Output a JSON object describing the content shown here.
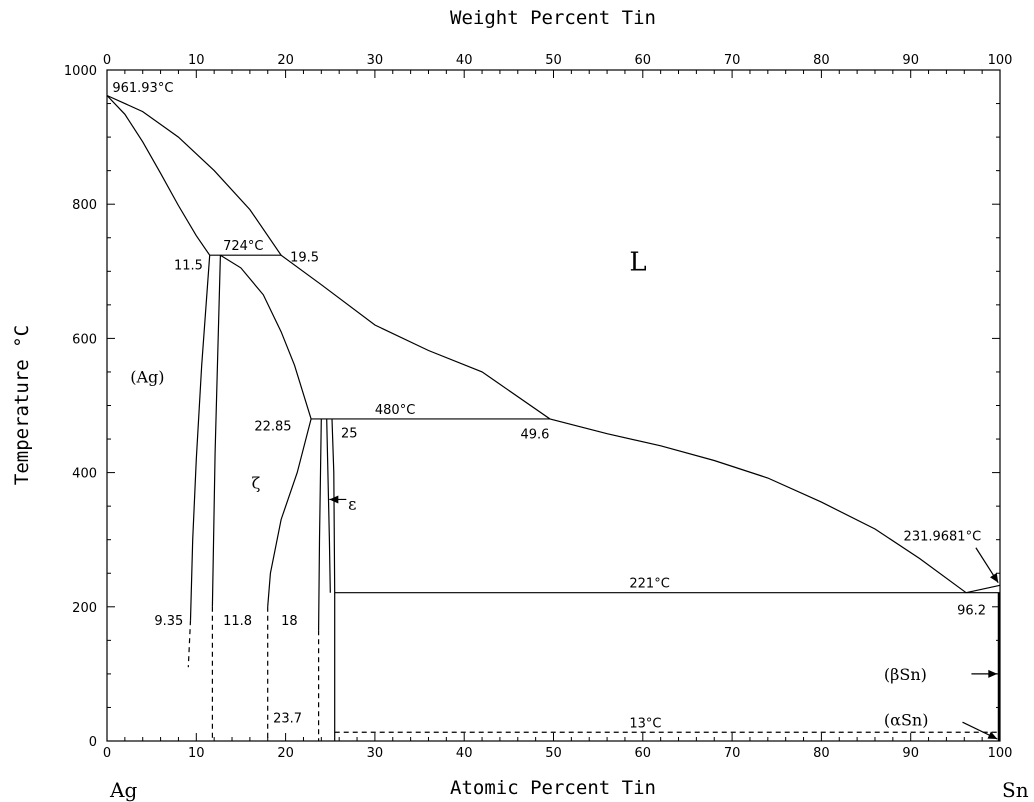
{
  "chart_data": {
    "type": "line",
    "title": "",
    "top_axis_title": "Weight Percent Tin",
    "xlabel": "Atomic Percent Tin",
    "ylabel": "Temperature °C",
    "left_element": "Ag",
    "right_element": "Sn",
    "xlim": [
      0,
      100
    ],
    "ylim": [
      0,
      1000
    ],
    "x_ticks": [
      "0",
      "10",
      "20",
      "30",
      "40",
      "50",
      "60",
      "70",
      "80",
      "90",
      "100"
    ],
    "y_ticks": [
      "0",
      "200",
      "400",
      "600",
      "800",
      "1000"
    ],
    "top_ticks": [
      "0",
      "10",
      "20",
      "30",
      "40",
      "50",
      "60",
      "70",
      "80",
      "90",
      "100"
    ],
    "grid": false,
    "series": [
      {
        "style": "solid",
        "points": [
          [
            0,
            961.93
          ],
          [
            2,
            934
          ],
          [
            4,
            893
          ],
          [
            6,
            846
          ],
          [
            8,
            798
          ],
          [
            10,
            753
          ],
          [
            11.5,
            724
          ]
        ]
      },
      {
        "style": "solid",
        "points": [
          [
            0,
            961.93
          ],
          [
            4,
            938
          ],
          [
            8,
            900
          ],
          [
            12,
            850
          ],
          [
            16,
            792
          ],
          [
            19.5,
            724
          ],
          [
            24,
            680
          ],
          [
            30,
            620
          ],
          [
            36,
            582
          ],
          [
            42,
            550
          ],
          [
            49.6,
            480
          ],
          [
            56,
            458
          ],
          [
            62,
            440
          ],
          [
            68,
            418
          ],
          [
            74,
            392
          ],
          [
            80,
            356
          ],
          [
            86,
            316
          ],
          [
            91,
            272
          ],
          [
            96.2,
            221
          ]
        ]
      },
      {
        "style": "solid",
        "points": [
          [
            11.5,
            724
          ],
          [
            10.6,
            560
          ],
          [
            10,
            420
          ],
          [
            9.6,
            300
          ],
          [
            9.35,
            180
          ]
        ]
      },
      {
        "style": "dashed",
        "points": [
          [
            9.35,
            180
          ],
          [
            9.1,
            110
          ]
        ]
      },
      {
        "style": "solid",
        "points": [
          [
            12.7,
            724
          ],
          [
            12.1,
            430
          ],
          [
            11.8,
            200
          ]
        ]
      },
      {
        "style": "dashed",
        "points": [
          [
            11.8,
            200
          ],
          [
            11.8,
            0
          ]
        ]
      },
      {
        "style": "solid",
        "points": [
          [
            12.7,
            724
          ],
          [
            15,
            705
          ],
          [
            17.5,
            665
          ],
          [
            19.5,
            610
          ],
          [
            21,
            560
          ],
          [
            22.85,
            480
          ]
        ]
      },
      {
        "style": "solid",
        "points": [
          [
            22.85,
            480
          ],
          [
            21.3,
            400
          ],
          [
            19.5,
            330
          ],
          [
            18.3,
            250
          ],
          [
            18,
            200
          ]
        ]
      },
      {
        "style": "dashed",
        "points": [
          [
            18,
            200
          ],
          [
            18,
            0
          ]
        ]
      },
      {
        "style": "solid",
        "points": [
          [
            24,
            480
          ],
          [
            23.8,
            300
          ],
          [
            23.7,
            165
          ]
        ]
      },
      {
        "style": "dashed",
        "points": [
          [
            23.7,
            165
          ],
          [
            23.7,
            0
          ]
        ]
      },
      {
        "style": "solid",
        "points": [
          [
            24.6,
            480
          ],
          [
            24.9,
            300
          ],
          [
            25,
            221
          ]
        ]
      },
      {
        "style": "solid",
        "points": [
          [
            25.2,
            480
          ],
          [
            25.4,
            400
          ],
          [
            25.5,
            221
          ],
          [
            25.5,
            0
          ]
        ]
      },
      {
        "style": "solid",
        "points": [
          [
            96.2,
            221
          ],
          [
            100,
            231.97
          ]
        ]
      }
    ],
    "isotherms": [
      {
        "temp": 724,
        "x1": 11.5,
        "x2": 19.5,
        "label": "724°C",
        "style": "solid"
      },
      {
        "temp": 480,
        "x1": 22.85,
        "x2": 49.6,
        "label": "480°C",
        "style": "solid"
      },
      {
        "temp": 221,
        "x1": 25.5,
        "x2": 100,
        "label": "221°C",
        "style": "solid"
      },
      {
        "temp": 13,
        "x1": 25.5,
        "x2": 100,
        "label": "13°C",
        "style": "dashed"
      }
    ],
    "annotations": [
      {
        "text": "961.93°C",
        "x": 0.6,
        "y": 975
      },
      {
        "text": "11.5",
        "x": 7.5,
        "y": 710
      },
      {
        "text": "19.5",
        "x": 20.5,
        "y": 722
      },
      {
        "text": "22.85",
        "x": 16.5,
        "y": 470
      },
      {
        "text": "25",
        "x": 26.2,
        "y": 460
      },
      {
        "text": "49.6",
        "x": 46.3,
        "y": 458
      },
      {
        "text": "9.35",
        "x": 5.3,
        "y": 180
      },
      {
        "text": "11.8",
        "x": 13.0,
        "y": 180
      },
      {
        "text": "18",
        "x": 19.5,
        "y": 180
      },
      {
        "text": "23.7",
        "x": 18.6,
        "y": 35
      },
      {
        "text": "96.2",
        "x": 95.2,
        "y": 196
      },
      {
        "text": "231.9681°C",
        "x": 89.2,
        "y": 306
      }
    ],
    "phase_labels": [
      {
        "text": "L",
        "x": 58.5,
        "y": 710
      },
      {
        "text": "(Ag)",
        "x": 2.6,
        "y": 543
      },
      {
        "text": "ζ",
        "x": 16.2,
        "y": 385
      },
      {
        "text": "ε",
        "x": 27.0,
        "y": 354
      },
      {
        "text": "(βSn)",
        "x": 87.0,
        "y": 100
      },
      {
        "text": "(αSn)",
        "x": 87.0,
        "y": 32
      }
    ]
  }
}
